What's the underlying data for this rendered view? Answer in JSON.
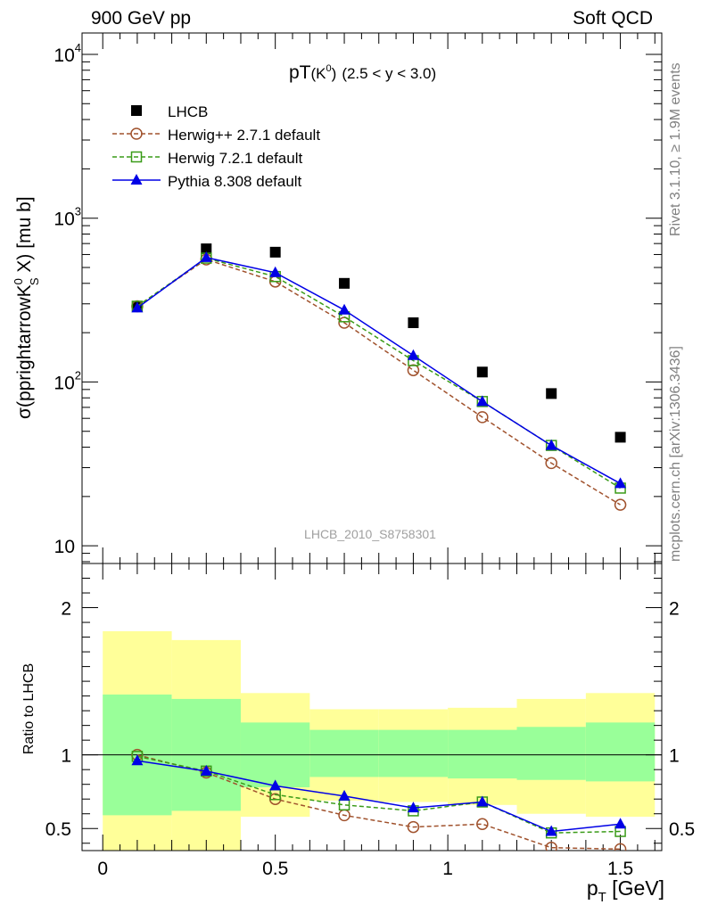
{
  "header": {
    "left": "900 GeV pp",
    "right": "Soft QCD"
  },
  "side_labels": {
    "rivet": "Rivet 3.1.10, ≥ 1.9M events",
    "mcplots": "mcplots.cern.ch [arXiv:1306.3436]"
  },
  "watermark": "LHCB_2010_S8758301",
  "plot_title": {
    "main": "pT",
    "particle": "(K",
    "particle_sup": "0",
    "range": "(2.5 < y < 3.0)"
  },
  "chart_data": [
    {
      "type": "scatter",
      "panel": "main",
      "scale": "log",
      "ylabel": {
        "prefix": "σ(pprightarrowK",
        "sup": "0",
        "sub": "S",
        "suffix": " X) [mu b]"
      },
      "ylim": [
        7.8,
        13500
      ],
      "xlim": [
        -0.06,
        1.62
      ],
      "x": [
        0.1,
        0.3,
        0.5,
        0.7,
        0.9,
        1.1,
        1.3,
        1.5
      ],
      "y_ticks": [
        {
          "value": 10,
          "base": "10",
          "exp": ""
        },
        {
          "value": 100,
          "base": "10",
          "exp": "2"
        },
        {
          "value": 1000,
          "base": "10",
          "exp": "3"
        },
        {
          "value": 10000,
          "base": "10",
          "exp": "4"
        }
      ],
      "series": [
        {
          "name": "LHCB",
          "style": "data",
          "color": "#000000",
          "values": [
            290,
            650,
            620,
            400,
            230,
            115,
            85,
            46
          ]
        },
        {
          "name": "Herwig++ 2.7.1 default",
          "style": "circle",
          "color": "#a0522d",
          "values": [
            290,
            560,
            410,
            230,
            118,
            61,
            32,
            17.8
          ]
        },
        {
          "name": "Herwig 7.2.1 default",
          "style": "square",
          "color": "#3a9b18",
          "values": [
            290,
            570,
            440,
            250,
            135,
            76,
            41,
            22.5
          ]
        },
        {
          "name": "Pythia 8.308 default",
          "style": "triangle",
          "color": "#0000e6",
          "values": [
            283,
            575,
            465,
            275,
            145,
            76,
            41,
            24
          ]
        }
      ]
    },
    {
      "type": "scatter",
      "panel": "ratio",
      "ylabel": "Ratio to LHCB",
      "ylim": [
        0.35,
        2.3
      ],
      "xlim": [
        -0.06,
        1.62
      ],
      "y_ticks": [
        "0.5",
        "1",
        "2"
      ],
      "x_ticks": [
        "0",
        "0.5",
        "1",
        "1.5"
      ],
      "xlabel": {
        "base": "p",
        "sub": "T",
        "suffix": " [GeV]"
      },
      "bands": [
        {
          "x0": 0.0,
          "x1": 0.2,
          "yellow": [
            0.0,
            1.84
          ],
          "green": [
            0.59,
            1.41
          ]
        },
        {
          "x0": 0.2,
          "x1": 0.4,
          "yellow": [
            0.0,
            1.78
          ],
          "green": [
            0.62,
            1.38
          ]
        },
        {
          "x0": 0.4,
          "x1": 0.6,
          "yellow": [
            0.58,
            1.42
          ],
          "green": [
            0.78,
            1.22
          ]
        },
        {
          "x0": 0.6,
          "x1": 0.8,
          "yellow": [
            0.69,
            1.31
          ],
          "green": [
            0.85,
            1.17
          ]
        },
        {
          "x0": 0.8,
          "x1": 1.0,
          "yellow": [
            0.68,
            1.31
          ],
          "green": [
            0.85,
            1.17
          ]
        },
        {
          "x0": 1.0,
          "x1": 1.2,
          "yellow": [
            0.66,
            1.32
          ],
          "green": [
            0.84,
            1.17
          ]
        },
        {
          "x0": 1.2,
          "x1": 1.4,
          "yellow": [
            0.6,
            1.38
          ],
          "green": [
            0.83,
            1.19
          ]
        },
        {
          "x0": 1.4,
          "x1": 1.6,
          "yellow": [
            0.58,
            1.42
          ],
          "green": [
            0.82,
            1.22
          ]
        }
      ],
      "series": [
        {
          "name": "Herwig++ 2.7.1 default",
          "style": "circle",
          "color": "#a0522d",
          "values": [
            1.0,
            0.88,
            0.7,
            0.59,
            0.51,
            0.53,
            0.37,
            0.36
          ]
        },
        {
          "name": "Herwig 7.2.1 default",
          "style": "square",
          "color": "#3a9b18",
          "values": [
            0.99,
            0.89,
            0.73,
            0.66,
            0.62,
            0.68,
            0.47,
            0.48
          ]
        },
        {
          "name": "Pythia 8.308 default",
          "style": "triangle",
          "color": "#0000e6",
          "values": [
            0.96,
            0.89,
            0.79,
            0.72,
            0.64,
            0.68,
            0.48,
            0.53
          ]
        }
      ]
    }
  ]
}
